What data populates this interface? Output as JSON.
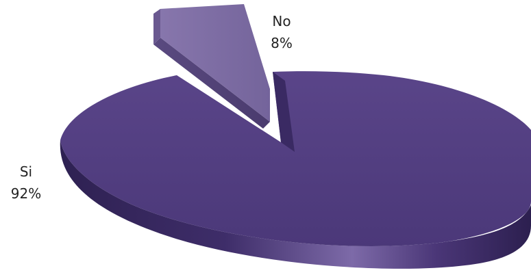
{
  "chart_data": {
    "type": "pie",
    "style": "3d-exploded",
    "slices": [
      {
        "label": "Si",
        "value": 92,
        "value_label": "92%",
        "color": "#4f3a7e"
      },
      {
        "label": "No",
        "value": 8,
        "value_label": "8%",
        "color": "#7b6aa2"
      }
    ]
  }
}
